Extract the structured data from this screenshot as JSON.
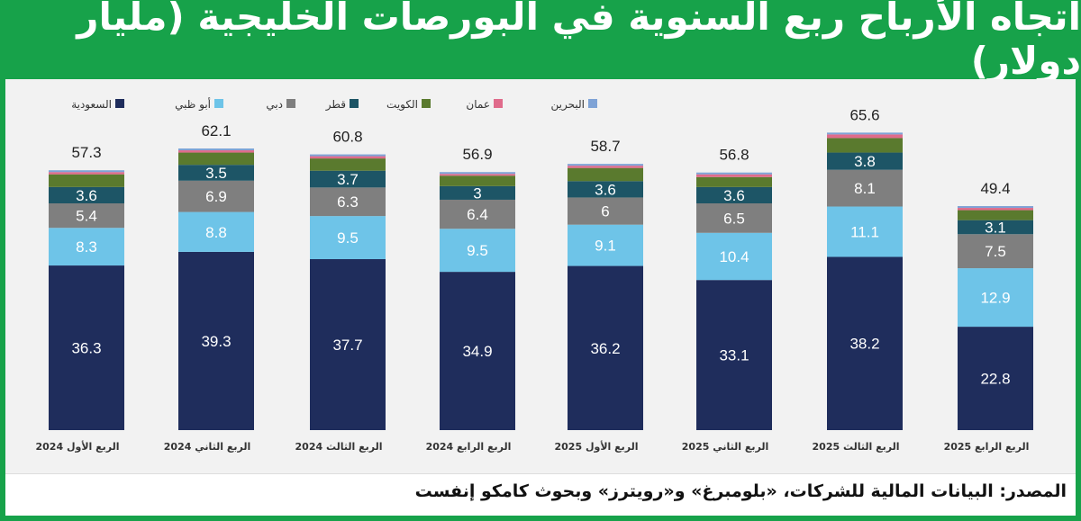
{
  "chart_data": {
    "type": "bar",
    "stacked": true,
    "title": "اتجاه الأرباح ربع السنوية في البورصات الخليجية (مليار دولار)",
    "categories": [
      "الربع الأول 2024",
      "الربع الثاني 2024",
      "الربع الثالث 2024",
      "الربع الرابع 2024",
      "الربع الأول 2025",
      "الربع الثاني 2025",
      "الربع الثالث 2025",
      "الربع الرابع 2025"
    ],
    "totals": [
      57.3,
      62.1,
      60.8,
      56.9,
      58.7,
      56.8,
      65.6,
      49.4
    ],
    "series": [
      {
        "name": "السعودية",
        "color": "#1f2d5c",
        "labeled": true,
        "values": [
          36.3,
          39.3,
          37.7,
          34.9,
          36.2,
          33.1,
          38.2,
          22.8
        ]
      },
      {
        "name": "أبو ظبي",
        "color": "#6ec4e8",
        "labeled": true,
        "values": [
          8.3,
          8.8,
          9.5,
          9.5,
          9.1,
          10.4,
          11.1,
          12.9
        ]
      },
      {
        "name": "دبي",
        "color": "#7f7f7f",
        "labeled": true,
        "values": [
          5.4,
          6.9,
          6.3,
          6.4,
          6.0,
          6.5,
          8.1,
          7.5
        ]
      },
      {
        "name": "قطر",
        "color": "#1d5566",
        "labeled": true,
        "values": [
          3.6,
          3.5,
          3.7,
          3.0,
          3.6,
          3.6,
          3.8,
          3.1
        ]
      },
      {
        "name": "الكويت",
        "color": "#5a7a2e",
        "labeled": false,
        "values": [
          2.8,
          2.7,
          2.7,
          2.3,
          2.9,
          2.2,
          3.2,
          2.2
        ]
      },
      {
        "name": "عمان",
        "color": "#e06b8b",
        "labeled": false,
        "values": [
          0.5,
          0.5,
          0.5,
          0.4,
          0.5,
          0.6,
          0.8,
          0.5
        ]
      },
      {
        "name": "البحرين",
        "color": "#7fa3d6",
        "labeled": false,
        "values": [
          0.4,
          0.4,
          0.4,
          0.4,
          0.4,
          0.4,
          0.4,
          0.4
        ]
      }
    ],
    "ylabel": "مليار دولار",
    "legend": "top",
    "grid": false
  },
  "source": "المصدر: البيانات المالية للشركات، «بلومبرغ» و«رويترز» وبحوث كامكو إنفست"
}
